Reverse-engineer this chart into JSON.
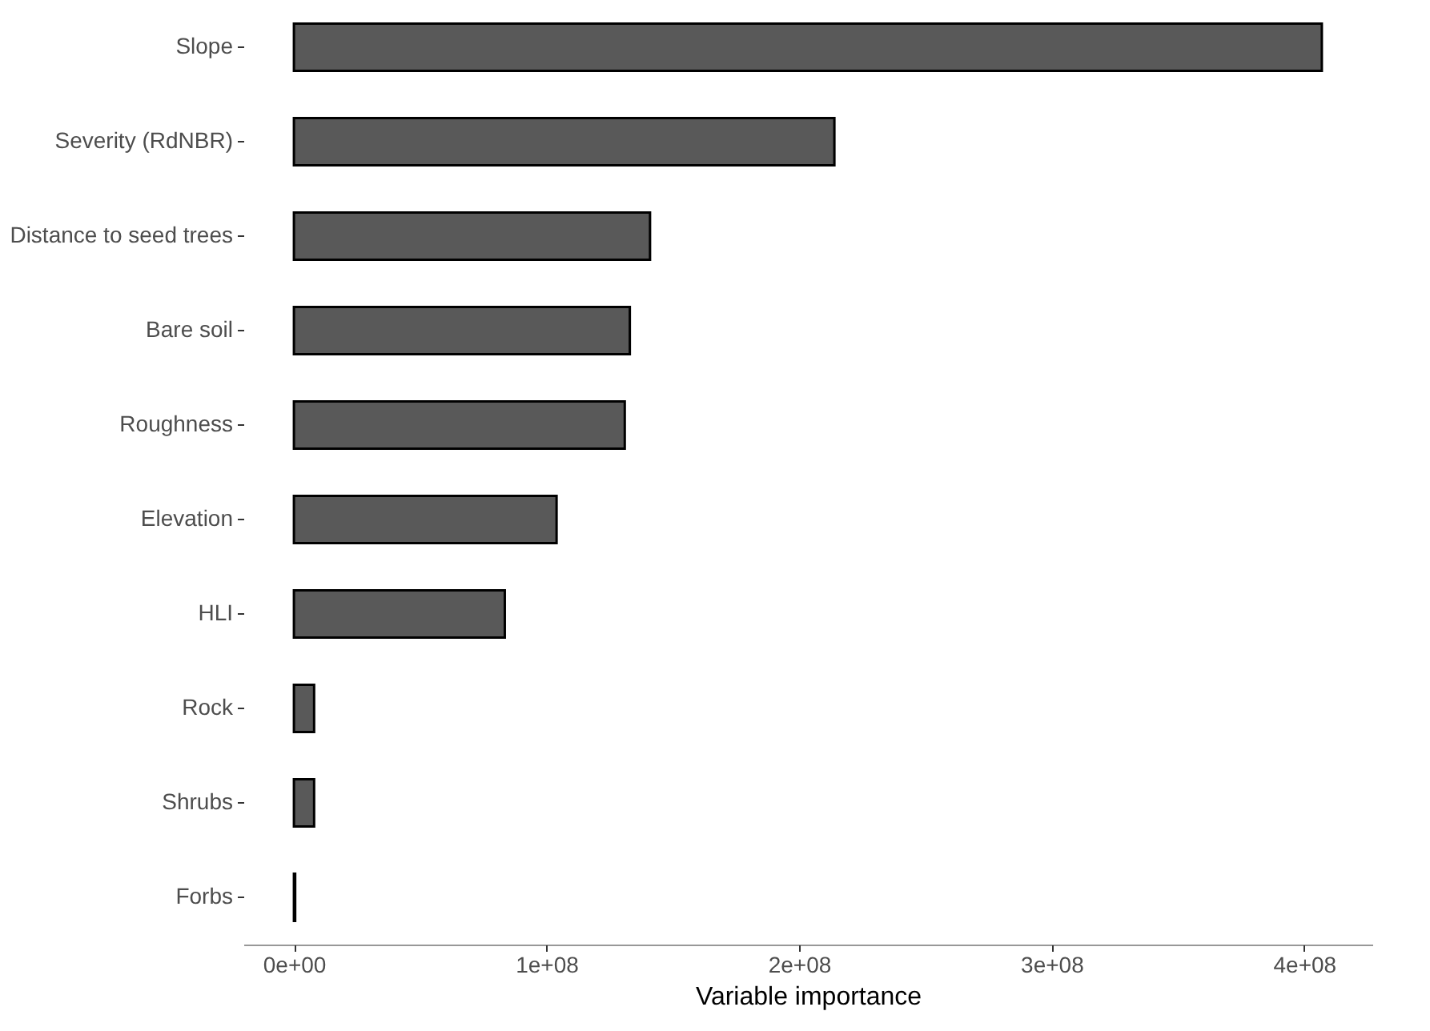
{
  "chart_data": {
    "type": "bar",
    "orientation": "horizontal",
    "xlabel": "Variable importance",
    "categories": [
      "Slope",
      "Severity (RdNBR)",
      "Distance to seed trees",
      "Bare soil",
      "Roughness",
      "Elevation",
      "HLI",
      "Rock",
      "Shrubs",
      "Forbs"
    ],
    "values": [
      407000000,
      214000000,
      141000000,
      133000000,
      131000000,
      104000000,
      83500000,
      8000000,
      8000000,
      500000
    ],
    "color": "#595959",
    "xlim": [
      -20000000,
      427000000
    ],
    "xticks": [
      {
        "value": 0,
        "label": "0e+00"
      },
      {
        "value": 100000000,
        "label": "1e+08"
      },
      {
        "value": 200000000,
        "label": "2e+08"
      },
      {
        "value": 300000000,
        "label": "3e+08"
      },
      {
        "value": 400000000,
        "label": "4e+08"
      }
    ],
    "grid": false
  }
}
